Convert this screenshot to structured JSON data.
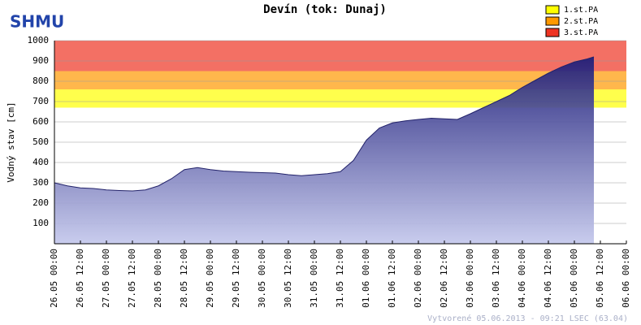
{
  "chart_data": {
    "type": "area",
    "title": "Devín (tok: Dunaj)",
    "logo": "SHMU",
    "y_label": "Vodný stav [cm]",
    "footer": "Vytvorené 05.06.2013 - 09:21 LSEC (63.04)",
    "ylim": [
      0,
      1000
    ],
    "yticks": [
      100,
      200,
      300,
      400,
      500,
      600,
      700,
      800,
      900,
      1000
    ],
    "grid": true,
    "xlim": [
      "26.05 00:00",
      "06.06 00:00"
    ],
    "xticks": [
      "26.05 00:00",
      "26.05 12:00",
      "27.05 00:00",
      "27.05 12:00",
      "28.05 00:00",
      "28.05 12:00",
      "29.05 00:00",
      "29.05 12:00",
      "30.05 00:00",
      "30.05 12:00",
      "31.05 00:00",
      "31.05 12:00",
      "01.06 00:00",
      "01.06 12:00",
      "02.06 00:00",
      "02.06 12:00",
      "03.06 00:00",
      "03.06 12:00",
      "04.06 00:00",
      "04.06 12:00",
      "05.06 00:00",
      "05.06 12:00",
      "06.06 00:00"
    ],
    "bands": [
      {
        "name": "1.st.PA",
        "color": "#ffff00",
        "from": 670,
        "to": 760
      },
      {
        "name": "2.st.PA",
        "color": "#ff9900",
        "from": 760,
        "to": 850
      },
      {
        "name": "3.st.PA",
        "color": "#ee3322",
        "from": 850,
        "to": 1000
      }
    ],
    "x": [
      "26.05 00:00",
      "26.05 06:00",
      "26.05 12:00",
      "26.05 18:00",
      "27.05 00:00",
      "27.05 06:00",
      "27.05 12:00",
      "27.05 18:00",
      "28.05 00:00",
      "28.05 06:00",
      "28.05 12:00",
      "28.05 18:00",
      "29.05 00:00",
      "29.05 06:00",
      "29.05 12:00",
      "29.05 18:00",
      "30.05 00:00",
      "30.05 06:00",
      "30.05 12:00",
      "30.05 18:00",
      "31.05 00:00",
      "31.05 06:00",
      "31.05 12:00",
      "31.05 18:00",
      "01.06 00:00",
      "01.06 06:00",
      "01.06 12:00",
      "01.06 18:00",
      "02.06 00:00",
      "02.06 06:00",
      "02.06 12:00",
      "02.06 18:00",
      "03.06 00:00",
      "03.06 06:00",
      "03.06 12:00",
      "03.06 18:00",
      "04.06 00:00",
      "04.06 06:00",
      "04.06 12:00",
      "04.06 18:00",
      "05.06 00:00",
      "05.06 06:00",
      "05.06 09:00"
    ],
    "values": [
      300,
      285,
      275,
      272,
      265,
      262,
      260,
      265,
      285,
      320,
      365,
      375,
      365,
      358,
      355,
      352,
      350,
      348,
      340,
      335,
      340,
      345,
      355,
      410,
      510,
      570,
      595,
      605,
      612,
      618,
      615,
      612,
      640,
      670,
      700,
      730,
      770,
      805,
      840,
      870,
      895,
      910,
      920
    ]
  }
}
